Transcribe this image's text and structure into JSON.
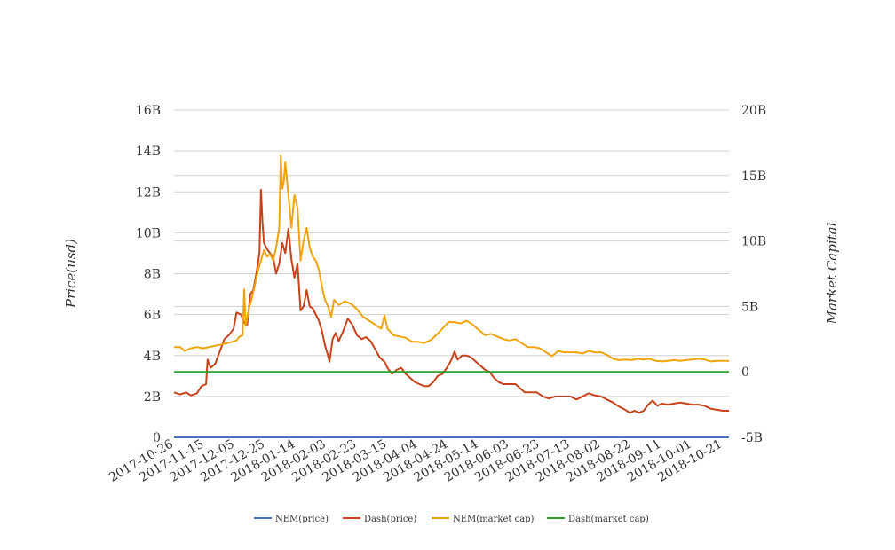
{
  "chart_data": {
    "type": "line",
    "xlabel": "",
    "ylabel": "Price(usd)",
    "y2label": "Market Capital",
    "ylim": [
      0,
      16000000000
    ],
    "y2lim": [
      -5000000000,
      20000000000
    ],
    "yticks": [
      0,
      2000000000,
      4000000000,
      6000000000,
      8000000000,
      10000000000,
      12000000000,
      14000000000,
      16000000000
    ],
    "ytick_labels": [
      "0",
      "2B",
      "4B",
      "6B",
      "8B",
      "10B",
      "12B",
      "14B",
      "16B"
    ],
    "y2ticks": [
      -5000000000,
      0,
      5000000000,
      10000000000,
      15000000000,
      20000000000
    ],
    "y2tick_labels": [
      "-5B",
      "0",
      "5B",
      "10B",
      "15B",
      "20B"
    ],
    "xlim": [
      "2017-10-26",
      "2018-10-25"
    ],
    "xtick_labels": [
      "2017-10-26",
      "2017-11-15",
      "2017-12-05",
      "2017-12-25",
      "2018-01-14",
      "2018-02-03",
      "2018-02-23",
      "2018-03-15",
      "2018-04-04",
      "2018-04-24",
      "2018-05-14",
      "2018-06-03",
      "2018-06-23",
      "2018-07-13",
      "2018-08-02",
      "2018-08-22",
      "2018-09-11",
      "2018-10-01",
      "2018-10-21"
    ],
    "grid": true,
    "legend_position": "bottom",
    "series": [
      {
        "name": "NEM(price)",
        "axis": "left",
        "color": "#4472c4",
        "points": [
          [
            "2017-10-26",
            0.2
          ],
          [
            "2018-02-01",
            1.0
          ],
          [
            "2018-10-25",
            0.25
          ]
        ]
      },
      {
        "name": "Dash(price)",
        "axis": "left",
        "color": "#c8421a",
        "points": [
          [
            "2017-10-26",
            2200000000
          ],
          [
            "2017-10-30",
            2100000000
          ],
          [
            "2017-11-03",
            2200000000
          ],
          [
            "2017-11-06",
            2050000000
          ],
          [
            "2017-11-10",
            2150000000
          ],
          [
            "2017-11-13",
            2500000000
          ],
          [
            "2017-11-16",
            2600000000
          ],
          [
            "2017-11-17",
            3800000000
          ],
          [
            "2017-11-19",
            3400000000
          ],
          [
            "2017-11-22",
            3600000000
          ],
          [
            "2017-11-25",
            4200000000
          ],
          [
            "2017-11-28",
            4800000000
          ],
          [
            "2017-12-01",
            5000000000
          ],
          [
            "2017-12-04",
            5300000000
          ],
          [
            "2017-12-06",
            6100000000
          ],
          [
            "2017-12-09",
            6000000000
          ],
          [
            "2017-12-11",
            5600000000
          ],
          [
            "2017-12-13",
            5500000000
          ],
          [
            "2017-12-15",
            7000000000
          ],
          [
            "2017-12-17",
            7200000000
          ],
          [
            "2017-12-19",
            8000000000
          ],
          [
            "2017-12-21",
            9000000000
          ],
          [
            "2017-12-22",
            12100000000
          ],
          [
            "2017-12-23",
            10500000000
          ],
          [
            "2017-12-24",
            9500000000
          ],
          [
            "2017-12-26",
            9200000000
          ],
          [
            "2017-12-28",
            9000000000
          ],
          [
            "2017-12-30",
            8800000000
          ],
          [
            "2018-01-01",
            8000000000
          ],
          [
            "2018-01-03",
            8500000000
          ],
          [
            "2018-01-05",
            9500000000
          ],
          [
            "2018-01-07",
            9000000000
          ],
          [
            "2018-01-09",
            10200000000
          ],
          [
            "2018-01-11",
            8700000000
          ],
          [
            "2018-01-13",
            7800000000
          ],
          [
            "2018-01-15",
            8500000000
          ],
          [
            "2018-01-17",
            6200000000
          ],
          [
            "2018-01-19",
            6400000000
          ],
          [
            "2018-01-21",
            7200000000
          ],
          [
            "2018-01-23",
            6400000000
          ],
          [
            "2018-01-25",
            6300000000
          ],
          [
            "2018-01-27",
            6000000000
          ],
          [
            "2018-01-29",
            5700000000
          ],
          [
            "2018-01-31",
            5200000000
          ],
          [
            "2018-02-02",
            4500000000
          ],
          [
            "2018-02-04",
            4000000000
          ],
          [
            "2018-02-05",
            3700000000
          ],
          [
            "2018-02-07",
            4800000000
          ],
          [
            "2018-02-09",
            5100000000
          ],
          [
            "2018-02-11",
            4700000000
          ],
          [
            "2018-02-14",
            5200000000
          ],
          [
            "2018-02-17",
            5800000000
          ],
          [
            "2018-02-20",
            5500000000
          ],
          [
            "2018-02-23",
            5000000000
          ],
          [
            "2018-02-26",
            4800000000
          ],
          [
            "2018-03-01",
            4900000000
          ],
          [
            "2018-03-04",
            4700000000
          ],
          [
            "2018-03-07",
            4300000000
          ],
          [
            "2018-03-10",
            3900000000
          ],
          [
            "2018-03-13",
            3700000000
          ],
          [
            "2018-03-15",
            3400000000
          ],
          [
            "2018-03-18",
            3100000000
          ],
          [
            "2018-03-21",
            3300000000
          ],
          [
            "2018-03-24",
            3400000000
          ],
          [
            "2018-03-27",
            3100000000
          ],
          [
            "2018-03-30",
            2900000000
          ],
          [
            "2018-04-02",
            2700000000
          ],
          [
            "2018-04-05",
            2600000000
          ],
          [
            "2018-04-08",
            2500000000
          ],
          [
            "2018-04-11",
            2500000000
          ],
          [
            "2018-04-14",
            2700000000
          ],
          [
            "2018-04-17",
            3000000000
          ],
          [
            "2018-04-20",
            3100000000
          ],
          [
            "2018-04-23",
            3400000000
          ],
          [
            "2018-04-26",
            3800000000
          ],
          [
            "2018-04-28",
            4200000000
          ],
          [
            "2018-04-30",
            3800000000
          ],
          [
            "2018-05-03",
            4000000000
          ],
          [
            "2018-05-06",
            4000000000
          ],
          [
            "2018-05-09",
            3900000000
          ],
          [
            "2018-05-12",
            3700000000
          ],
          [
            "2018-05-15",
            3500000000
          ],
          [
            "2018-05-18",
            3300000000
          ],
          [
            "2018-05-21",
            3200000000
          ],
          [
            "2018-05-24",
            2900000000
          ],
          [
            "2018-05-27",
            2700000000
          ],
          [
            "2018-05-30",
            2600000000
          ],
          [
            "2018-06-03",
            2600000000
          ],
          [
            "2018-06-07",
            2600000000
          ],
          [
            "2018-06-10",
            2400000000
          ],
          [
            "2018-06-13",
            2200000000
          ],
          [
            "2018-06-17",
            2200000000
          ],
          [
            "2018-06-21",
            2200000000
          ],
          [
            "2018-06-25",
            2000000000
          ],
          [
            "2018-06-29",
            1900000000
          ],
          [
            "2018-07-03",
            2000000000
          ],
          [
            "2018-07-08",
            2000000000
          ],
          [
            "2018-07-13",
            2000000000
          ],
          [
            "2018-07-17",
            1850000000
          ],
          [
            "2018-07-21",
            2000000000
          ],
          [
            "2018-07-25",
            2150000000
          ],
          [
            "2018-07-29",
            2050000000
          ],
          [
            "2018-08-02",
            2000000000
          ],
          [
            "2018-08-06",
            1850000000
          ],
          [
            "2018-08-10",
            1700000000
          ],
          [
            "2018-08-14",
            1500000000
          ],
          [
            "2018-08-18",
            1350000000
          ],
          [
            "2018-08-21",
            1200000000
          ],
          [
            "2018-08-24",
            1300000000
          ],
          [
            "2018-08-27",
            1200000000
          ],
          [
            "2018-08-30",
            1300000000
          ],
          [
            "2018-09-02",
            1600000000
          ],
          [
            "2018-09-05",
            1800000000
          ],
          [
            "2018-09-08",
            1550000000
          ],
          [
            "2018-09-11",
            1650000000
          ],
          [
            "2018-09-15",
            1600000000
          ],
          [
            "2018-09-19",
            1650000000
          ],
          [
            "2018-09-23",
            1700000000
          ],
          [
            "2018-09-27",
            1650000000
          ],
          [
            "2018-10-01",
            1600000000
          ],
          [
            "2018-10-05",
            1600000000
          ],
          [
            "2018-10-09",
            1550000000
          ],
          [
            "2018-10-13",
            1400000000
          ],
          [
            "2018-10-17",
            1350000000
          ],
          [
            "2018-10-21",
            1300000000
          ],
          [
            "2018-10-25",
            1300000000
          ]
        ]
      },
      {
        "name": "NEM(market cap)",
        "axis": "right",
        "color": "#f0a30a",
        "points": [
          [
            "2017-10-26",
            1900000000
          ],
          [
            "2017-10-30",
            1900000000
          ],
          [
            "2017-11-02",
            1600000000
          ],
          [
            "2017-11-06",
            1800000000
          ],
          [
            "2017-11-10",
            1900000000
          ],
          [
            "2017-11-14",
            1800000000
          ],
          [
            "2017-11-18",
            1900000000
          ],
          [
            "2017-11-22",
            2000000000
          ],
          [
            "2017-11-26",
            2100000000
          ],
          [
            "2017-11-30",
            2200000000
          ],
          [
            "2017-12-03",
            2300000000
          ],
          [
            "2017-12-06",
            2400000000
          ],
          [
            "2017-12-08",
            2700000000
          ],
          [
            "2017-12-10",
            2800000000
          ],
          [
            "2017-12-11",
            6300000000
          ],
          [
            "2017-12-12",
            3500000000
          ],
          [
            "2017-12-14",
            4800000000
          ],
          [
            "2017-12-16",
            5600000000
          ],
          [
            "2017-12-18",
            6600000000
          ],
          [
            "2017-12-20",
            7700000000
          ],
          [
            "2017-12-22",
            8500000000
          ],
          [
            "2017-12-24",
            9300000000
          ],
          [
            "2017-12-26",
            8800000000
          ],
          [
            "2017-12-28",
            9000000000
          ],
          [
            "2017-12-30",
            8500000000
          ],
          [
            "2018-01-01",
            9500000000
          ],
          [
            "2018-01-03",
            11000000000
          ],
          [
            "2018-01-04",
            16500000000
          ],
          [
            "2018-01-05",
            14000000000
          ],
          [
            "2018-01-06",
            14500000000
          ],
          [
            "2018-01-07",
            16000000000
          ],
          [
            "2018-01-09",
            13500000000
          ],
          [
            "2018-01-11",
            11000000000
          ],
          [
            "2018-01-13",
            13500000000
          ],
          [
            "2018-01-15",
            12500000000
          ],
          [
            "2018-01-17",
            8500000000
          ],
          [
            "2018-01-19",
            10000000000
          ],
          [
            "2018-01-21",
            11000000000
          ],
          [
            "2018-01-23",
            9500000000
          ],
          [
            "2018-01-25",
            8800000000
          ],
          [
            "2018-01-27",
            8500000000
          ],
          [
            "2018-01-29",
            7800000000
          ],
          [
            "2018-01-31",
            6500000000
          ],
          [
            "2018-02-02",
            5500000000
          ],
          [
            "2018-02-04",
            5000000000
          ],
          [
            "2018-02-06",
            4200000000
          ],
          [
            "2018-02-08",
            5500000000
          ],
          [
            "2018-02-11",
            5100000000
          ],
          [
            "2018-02-15",
            5400000000
          ],
          [
            "2018-02-19",
            5200000000
          ],
          [
            "2018-02-23",
            4800000000
          ],
          [
            "2018-02-27",
            4200000000
          ],
          [
            "2018-03-03",
            3900000000
          ],
          [
            "2018-03-07",
            3600000000
          ],
          [
            "2018-03-11",
            3300000000
          ],
          [
            "2018-03-13",
            4300000000
          ],
          [
            "2018-03-15",
            3300000000
          ],
          [
            "2018-03-19",
            2800000000
          ],
          [
            "2018-03-23",
            2700000000
          ],
          [
            "2018-03-27",
            2600000000
          ],
          [
            "2018-03-31",
            2300000000
          ],
          [
            "2018-04-04",
            2300000000
          ],
          [
            "2018-04-08",
            2200000000
          ],
          [
            "2018-04-12",
            2400000000
          ],
          [
            "2018-04-16",
            2800000000
          ],
          [
            "2018-04-20",
            3300000000
          ],
          [
            "2018-04-24",
            3800000000
          ],
          [
            "2018-04-28",
            3800000000
          ],
          [
            "2018-05-02",
            3700000000
          ],
          [
            "2018-05-06",
            3900000000
          ],
          [
            "2018-05-10",
            3600000000
          ],
          [
            "2018-05-14",
            3200000000
          ],
          [
            "2018-05-18",
            2800000000
          ],
          [
            "2018-05-22",
            2900000000
          ],
          [
            "2018-05-26",
            2700000000
          ],
          [
            "2018-05-30",
            2500000000
          ],
          [
            "2018-06-03",
            2400000000
          ],
          [
            "2018-06-07",
            2500000000
          ],
          [
            "2018-06-11",
            2200000000
          ],
          [
            "2018-06-15",
            1900000000
          ],
          [
            "2018-06-19",
            1900000000
          ],
          [
            "2018-06-23",
            1800000000
          ],
          [
            "2018-06-27",
            1500000000
          ],
          [
            "2018-07-01",
            1200000000
          ],
          [
            "2018-07-05",
            1600000000
          ],
          [
            "2018-07-09",
            1500000000
          ],
          [
            "2018-07-13",
            1500000000
          ],
          [
            "2018-07-17",
            1500000000
          ],
          [
            "2018-07-21",
            1400000000
          ],
          [
            "2018-07-25",
            1600000000
          ],
          [
            "2018-07-29",
            1500000000
          ],
          [
            "2018-08-02",
            1500000000
          ],
          [
            "2018-08-06",
            1300000000
          ],
          [
            "2018-08-10",
            1000000000
          ],
          [
            "2018-08-14",
            900000000
          ],
          [
            "2018-08-18",
            950000000
          ],
          [
            "2018-08-22",
            900000000
          ],
          [
            "2018-08-26",
            1000000000
          ],
          [
            "2018-08-30",
            950000000
          ],
          [
            "2018-09-03",
            1000000000
          ],
          [
            "2018-09-07",
            850000000
          ],
          [
            "2018-09-11",
            800000000
          ],
          [
            "2018-09-15",
            850000000
          ],
          [
            "2018-09-19",
            900000000
          ],
          [
            "2018-09-23",
            850000000
          ],
          [
            "2018-09-27",
            900000000
          ],
          [
            "2018-10-01",
            950000000
          ],
          [
            "2018-10-05",
            1000000000
          ],
          [
            "2018-10-09",
            950000000
          ],
          [
            "2018-10-13",
            800000000
          ],
          [
            "2018-10-17",
            850000000
          ],
          [
            "2018-10-21",
            850000000
          ],
          [
            "2018-10-25",
            850000000
          ]
        ]
      },
      {
        "name": "Dash(market cap)",
        "axis": "right",
        "color": "#2ca02c",
        "points": [
          [
            "2017-10-26",
            0.3
          ],
          [
            "2018-02-01",
            0.6
          ],
          [
            "2018-10-25",
            0.8
          ]
        ]
      }
    ]
  }
}
